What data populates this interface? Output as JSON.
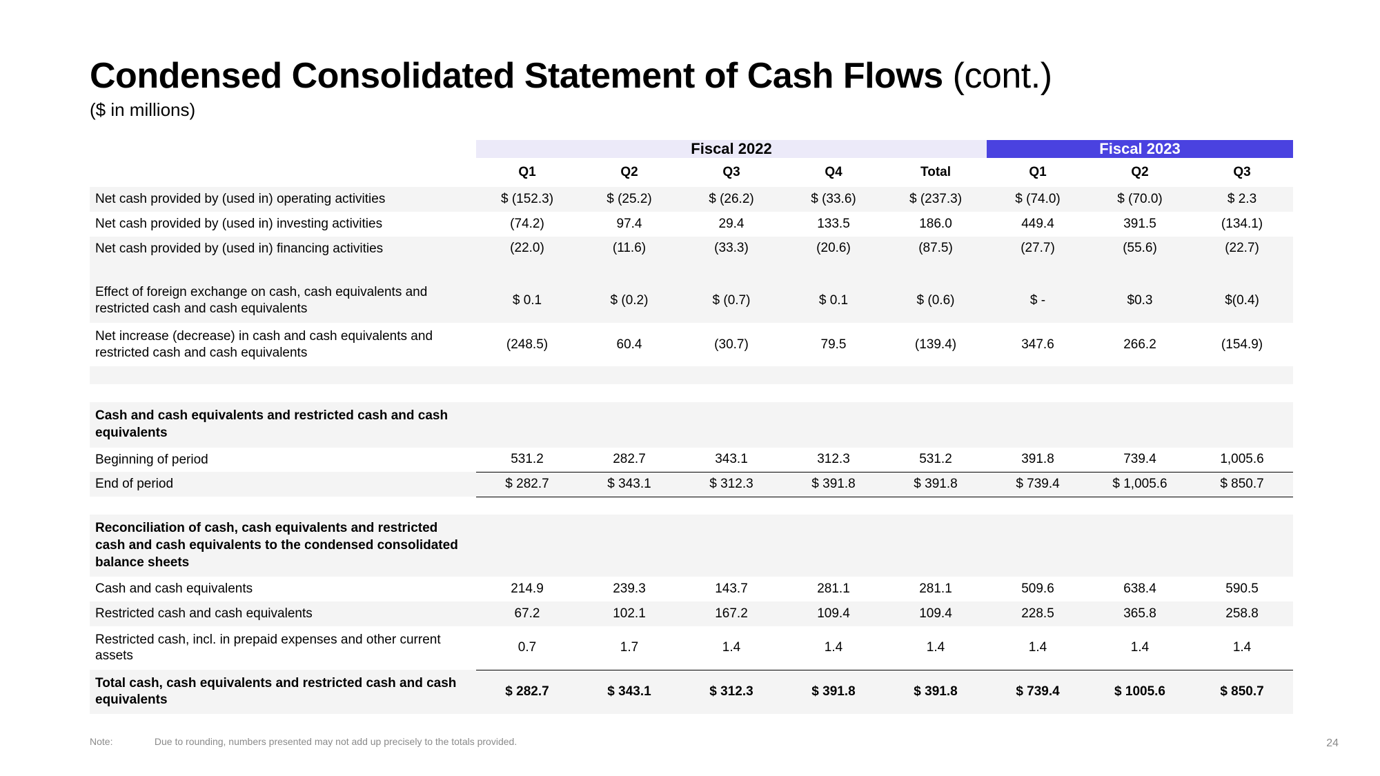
{
  "title_bold": "Condensed Consolidated Statement of Cash Flows",
  "title_cont": "(cont.)",
  "subtitle": "($ in millions)",
  "fiscal": {
    "y2022": "Fiscal 2022",
    "y2023": "Fiscal 2023"
  },
  "cols": {
    "q1": "Q1",
    "q2": "Q2",
    "q3": "Q3",
    "q4": "Q4",
    "total": "Total",
    "q1b": "Q1",
    "q2b": "Q2",
    "q3b": "Q3"
  },
  "colors": {
    "fiscal2022_bg": "#eceaf9",
    "fiscal2023_bg": "#4a42e0",
    "fiscal2023_text": "#ffffff",
    "stripe": "#f4f4f4",
    "text": "#000000",
    "footer_text": "#8a8a8a"
  },
  "rows": {
    "op": {
      "label": "Net cash provided by (used in) operating activities",
      "v": [
        "$ (152.3)",
        "$ (25.2)",
        "$ (26.2)",
        "$ (33.6)",
        "$ (237.3)",
        "$ (74.0)",
        "$ (70.0)",
        "$ 2.3"
      ]
    },
    "inv": {
      "label": "Net cash provided by (used in) investing activities",
      "v": [
        "(74.2)",
        "97.4",
        "29.4",
        "133.5",
        "186.0",
        "449.4",
        "391.5",
        "(134.1)"
      ]
    },
    "fin": {
      "label": "Net cash provided by (used in) financing activities",
      "v": [
        "(22.0)",
        "(11.6)",
        "(33.3)",
        "(20.6)",
        "(87.5)",
        "(27.7)",
        "(55.6)",
        "(22.7)"
      ]
    },
    "fx": {
      "label": "Effect of foreign exchange on cash, cash equivalents and restricted cash and cash equivalents",
      "v": [
        "$ 0.1",
        "$ (0.2)",
        "$ (0.7)",
        "$ 0.1",
        "$ (0.6)",
        "$ -",
        "$0.3",
        "$(0.4)"
      ]
    },
    "netinc": {
      "label": "Net increase (decrease) in cash and cash equivalents and restricted cash and cash equivalents",
      "v": [
        "(248.5)",
        "60.4",
        "(30.7)",
        "79.5",
        "(139.4)",
        "347.6",
        "266.2",
        "(154.9)"
      ]
    },
    "sec1": "Cash and cash equivalents and restricted cash and cash equivalents",
    "bop": {
      "label": "Beginning of period",
      "v": [
        "531.2",
        "282.7",
        "343.1",
        "312.3",
        "531.2",
        "391.8",
        "739.4",
        "1,005.6"
      ]
    },
    "eop": {
      "label": "End of period",
      "v": [
        "$ 282.7",
        "$ 343.1",
        "$ 312.3",
        "$ 391.8",
        "$ 391.8",
        "$ 739.4",
        "$ 1,005.6",
        "$ 850.7"
      ]
    },
    "sec2": "Reconciliation of cash, cash equivalents and restricted cash and cash equivalents to the condensed consolidated balance sheets",
    "cce": {
      "label": "Cash and cash equivalents",
      "v": [
        "214.9",
        "239.3",
        "143.7",
        "281.1",
        "281.1",
        "509.6",
        "638.4",
        "590.5"
      ]
    },
    "rcce": {
      "label": "Restricted cash and cash equivalents",
      "v": [
        "67.2",
        "102.1",
        "167.2",
        "109.4",
        "109.4",
        "228.5",
        "365.8",
        "258.8"
      ]
    },
    "rpre": {
      "label": "Restricted cash, incl. in prepaid expenses and other current assets",
      "v": [
        "0.7",
        "1.7",
        "1.4",
        "1.4",
        "1.4",
        "1.4",
        "1.4",
        "1.4"
      ]
    },
    "total": {
      "label": "Total cash, cash equivalents and restricted cash and cash equivalents",
      "v": [
        "$ 282.7",
        "$ 343.1",
        "$ 312.3",
        "$ 391.8",
        "$ 391.8",
        "$ 739.4",
        "$ 1005.6",
        "$ 850.7"
      ]
    }
  },
  "footer": {
    "note": "Note:",
    "text": "Due to rounding, numbers presented may not add up precisely to the totals provided."
  },
  "page": "24"
}
